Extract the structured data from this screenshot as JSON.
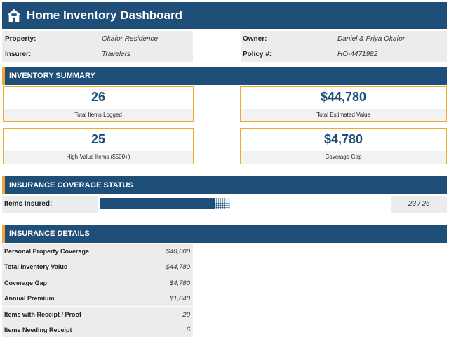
{
  "header": {
    "title": "Home Inventory Dashboard",
    "icon": "house-icon"
  },
  "info": {
    "property_label": "Property:",
    "property_value": "Okafor Residence",
    "insurer_label": "Insurer:",
    "insurer_value": "Travelers",
    "owner_label": "Owner:",
    "owner_value": "Daniel & Priya Okafor",
    "policy_label": "Policy #:",
    "policy_value": "HO-4471982"
  },
  "summary": {
    "title": "INVENTORY SUMMARY",
    "cards": [
      {
        "value": "26",
        "label": "Total Items Logged"
      },
      {
        "value": "$44,780",
        "label": "Total Estimated Value"
      },
      {
        "value": "25",
        "label": "High-Value Items ($500+)"
      },
      {
        "value": "$4,780",
        "label": "Coverage Gap"
      }
    ]
  },
  "coverage": {
    "title": "INSURANCE COVERAGE STATUS",
    "label": "Items Insured:",
    "ratio_text": "23 / 26",
    "insured": 23,
    "total": 26
  },
  "details": {
    "title": "INSURANCE DETAILS",
    "rows": [
      {
        "label": "Personal Property Coverage",
        "value": "$40,000"
      },
      {
        "label": "Total Inventory Value",
        "value": "$44,780"
      },
      {
        "label": "Coverage Gap",
        "value": "$4,780"
      },
      {
        "label": "Annual Premium",
        "value": "$1,840"
      },
      {
        "label": "Items with Receipt / Proof",
        "value": "20"
      },
      {
        "label": "Items Needing Receipt",
        "value": "6"
      }
    ]
  },
  "colors": {
    "primary": "#1f4e79",
    "accent": "#f0a830",
    "panel": "#ececec"
  }
}
